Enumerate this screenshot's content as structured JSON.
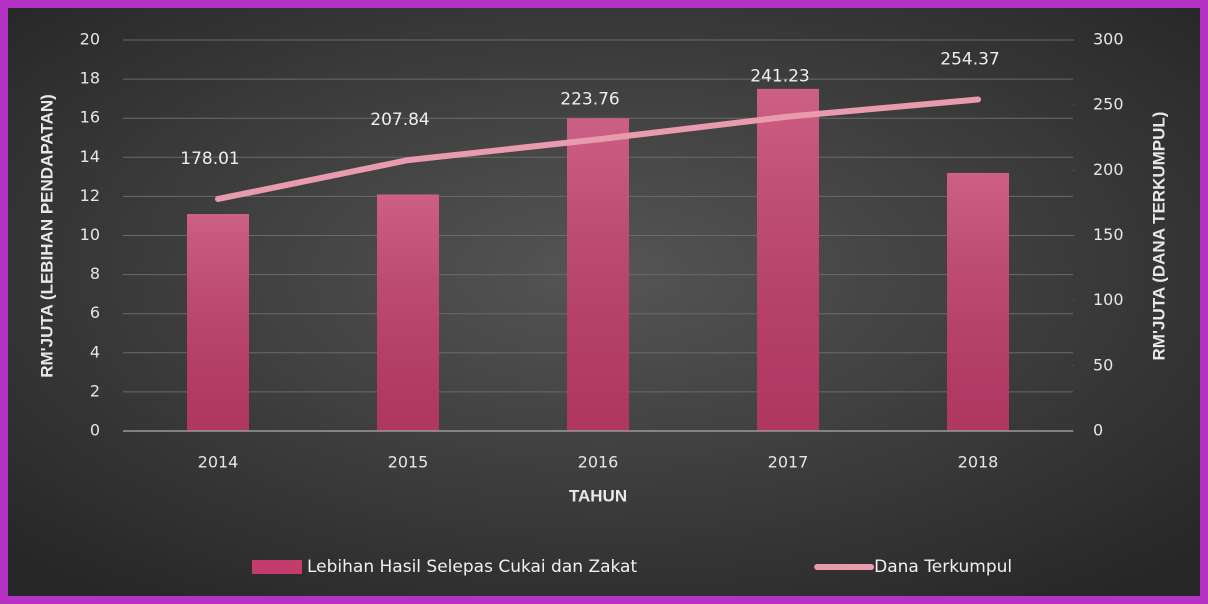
{
  "chart_data": {
    "type": "combo",
    "categories": [
      "2014",
      "2015",
      "2016",
      "2017",
      "2018"
    ],
    "series": [
      {
        "name": "Lebihan Hasil Selepas Cukai dan Zakat",
        "type": "bar",
        "color": "#c23d6b",
        "values": [
          11.1,
          12.1,
          16.0,
          17.5,
          13.2
        ]
      },
      {
        "name": "Dana Terkumpul",
        "type": "line",
        "axis": "y2",
        "color": "#e89aae",
        "values": [
          178.01,
          207.84,
          223.76,
          241.23,
          254.37
        ]
      }
    ],
    "ylim": [
      0,
      20
    ],
    "yticks": [
      0,
      2,
      4,
      6,
      8,
      10,
      12,
      14,
      16,
      18,
      20
    ],
    "y2lim": [
      0,
      300
    ],
    "y2ticks": [
      0,
      50,
      100,
      150,
      200,
      250,
      300
    ],
    "y_label": "RM'JUTA (LEBIHAN PENDAPATAN)",
    "y2_label": "RM'JUTA (DANA TERKUMPUL)",
    "x_label": "TAHUN",
    "grid": true,
    "legend": "bottom"
  }
}
